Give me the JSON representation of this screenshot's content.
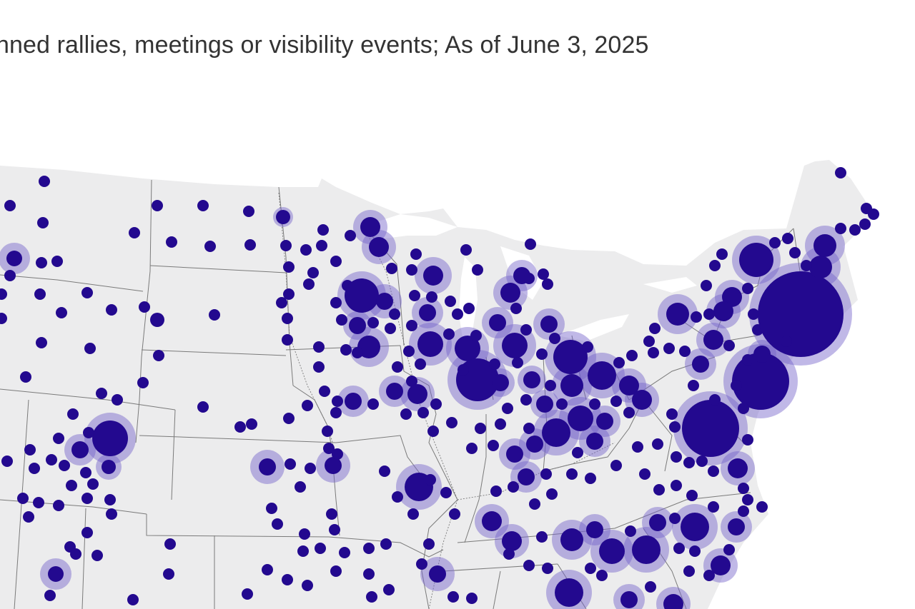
{
  "subtitle": "nned rallies, meetings or visibility events; As of June 3, 2025",
  "colors": {
    "land": "#ececed",
    "border": "#7a7a7a",
    "dot": "#23098f",
    "halo": "#7461c9"
  },
  "legend": null
}
